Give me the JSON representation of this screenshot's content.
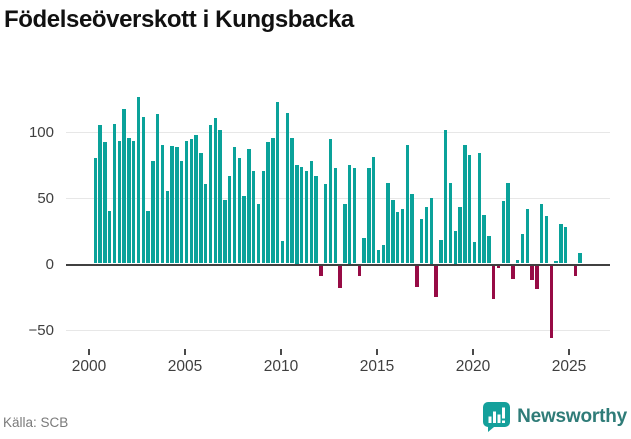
{
  "title": "Födelseöverskott i Kungsbacka",
  "source": "Källa: SCB",
  "brand": {
    "name": "Newsworthy"
  },
  "colors": {
    "positive_bar": "#0aa29a",
    "negative_bar": "#970b45",
    "gridline": "#e7e7e7",
    "zero_line": "#404040",
    "axis_text": "#3f3f3f",
    "source_text": "#7a7a7a",
    "brand_text": "#2f7c78",
    "title_text": "#111111",
    "background": "#ffffff"
  },
  "chart_data": {
    "type": "bar",
    "title": "Födelseöverskott i Kungsbacka",
    "xlabel": "",
    "ylabel": "",
    "unit": "quarterly birth surplus (persons)",
    "period": "2000 Q1 – 2025 Q2",
    "start_year": 2000,
    "start_quarter": 1,
    "values": [
      80,
      105,
      92,
      40,
      106,
      93,
      117,
      95,
      93,
      126,
      111,
      40,
      78,
      113,
      90,
      55,
      89,
      88,
      78,
      93,
      94,
      97,
      84,
      60,
      105,
      110,
      101,
      48,
      66,
      88,
      80,
      51,
      87,
      70,
      45,
      70,
      92,
      95,
      122,
      17,
      114,
      95,
      75,
      73,
      70,
      78,
      66,
      -8,
      60,
      94,
      72,
      -17,
      45,
      75,
      72,
      -8,
      19,
      72,
      81,
      10,
      14,
      61,
      48,
      39,
      41,
      90,
      53,
      -16,
      34,
      43,
      50,
      -24,
      18,
      101,
      61,
      25,
      43,
      90,
      82,
      16,
      84,
      37,
      21,
      -25,
      -2,
      47,
      61,
      -10,
      3,
      22,
      41,
      -11,
      -18,
      45,
      36,
      -55,
      2,
      30,
      28,
      0,
      -8,
      8
    ],
    "x_tick_labels": [
      "2000",
      "2005",
      "2010",
      "2015",
      "2020",
      "2025"
    ],
    "y_tick_values": [
      100,
      50,
      0,
      -50
    ],
    "y_tick_labels": [
      "100",
      "50",
      "0",
      "−50"
    ],
    "ylim": [
      -62,
      128
    ],
    "grid": "horizontal",
    "legend": "none"
  }
}
